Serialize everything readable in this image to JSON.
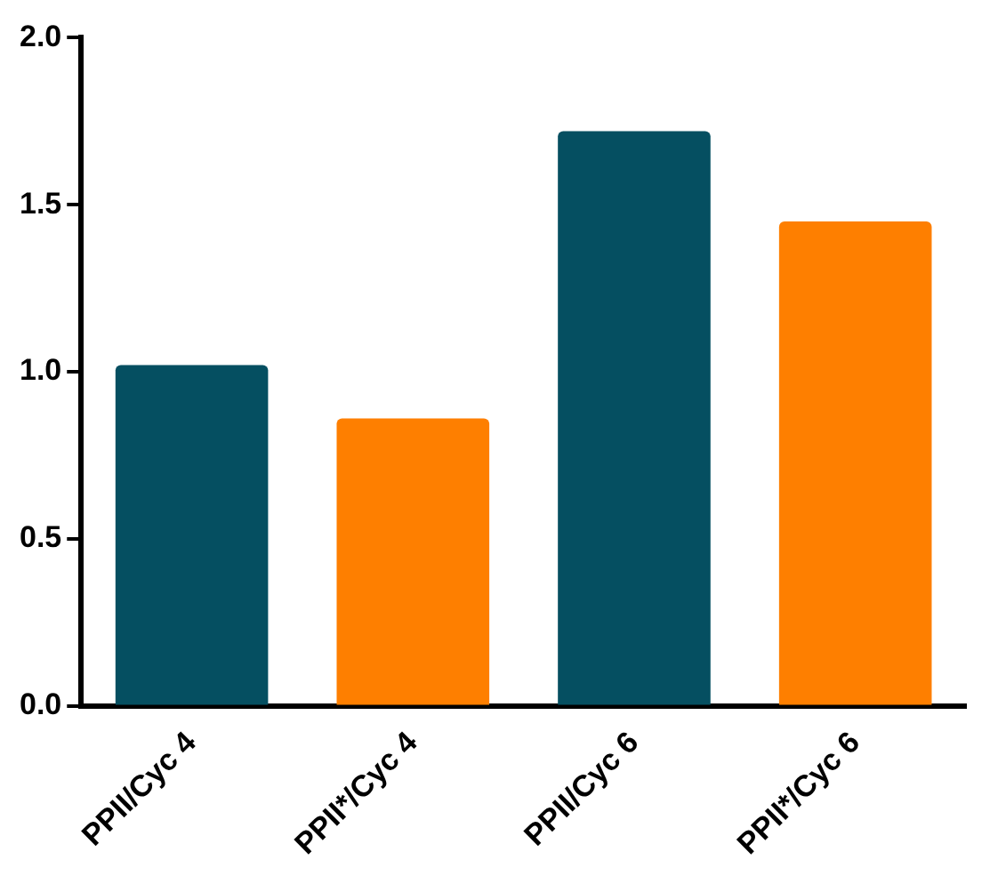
{
  "chart_data": {
    "type": "bar",
    "categories": [
      "PPII/Cyc 4",
      "PPII*/Cyc 4",
      "PPII/Cyc 6",
      "PPII*/Cyc 6"
    ],
    "values": [
      1.02,
      0.86,
      1.72,
      1.45
    ],
    "colors": [
      "#054f61",
      "#fe7f00",
      "#054f61",
      "#fe7f00"
    ],
    "ylim": [
      0,
      2
    ],
    "yticks": [
      {
        "value": 0,
        "label": "0.0"
      },
      {
        "value": 0.5,
        "label": "0.5"
      },
      {
        "value": 1,
        "label": "1.0"
      },
      {
        "value": 1.5,
        "label": "1.5"
      },
      {
        "value": 2,
        "label": "2.0"
      }
    ],
    "grid": false,
    "legend": false
  }
}
